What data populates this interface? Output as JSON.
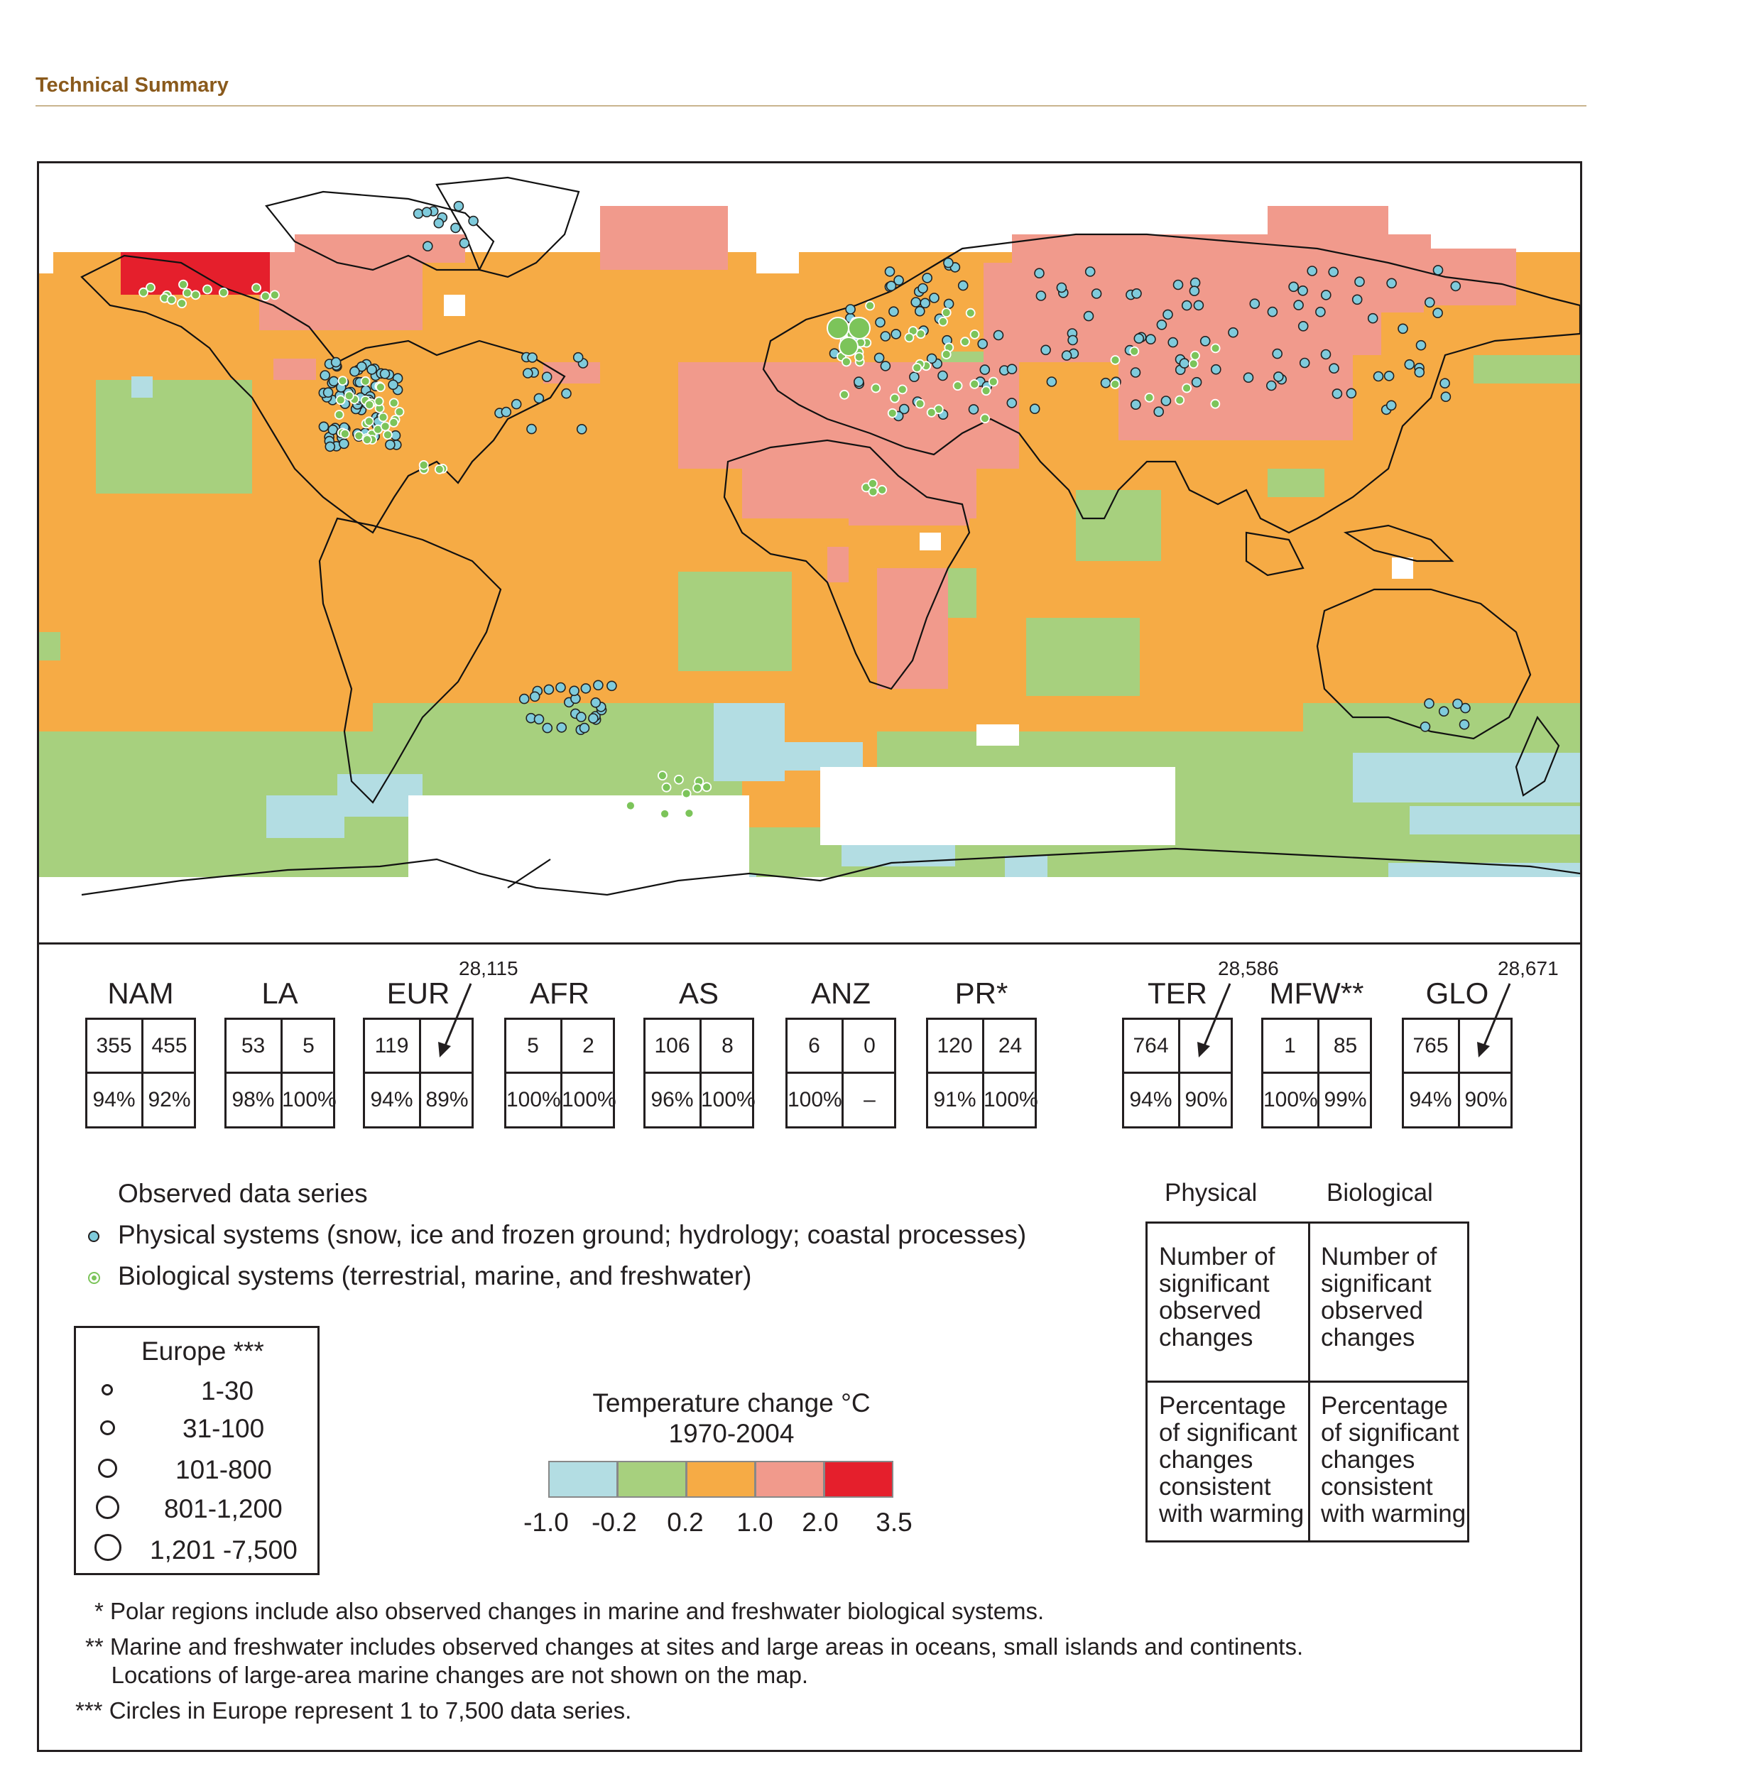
{
  "header": {
    "section_title": "Technical Summary"
  },
  "colors": {
    "header_text": "#8a5a1c",
    "header_rule": "#c9b48e",
    "ocean_default": "#f6ab45",
    "bin_m1_m02": "#b3dde3",
    "bin_m02_02": "#a7d07e",
    "bin_02_1": "#f6ab45",
    "bin_1_2": "#f19a8c",
    "bin_2_35": "#e51f2c",
    "physical_dot": "#7fcbdc",
    "biological_dot": "#7cc45a"
  },
  "regions": [
    {
      "code": "NAM",
      "physical_count": "355",
      "biological_count": "455",
      "physical_pct": "94%",
      "biological_pct": "92%"
    },
    {
      "code": "LA",
      "physical_count": "53",
      "biological_count": "5",
      "physical_pct": "98%",
      "biological_pct": "100%"
    },
    {
      "code": "EUR",
      "physical_count": "119",
      "biological_count": "",
      "physical_pct": "94%",
      "biological_pct": "89%",
      "arrow_value": "28,115"
    },
    {
      "code": "AFR",
      "physical_count": "5",
      "biological_count": "2",
      "physical_pct": "100%",
      "biological_pct": "100%"
    },
    {
      "code": "AS",
      "physical_count": "106",
      "biological_count": "8",
      "physical_pct": "96%",
      "biological_pct": "100%"
    },
    {
      "code": "ANZ",
      "physical_count": "6",
      "biological_count": "0",
      "physical_pct": "100%",
      "biological_pct": "–"
    },
    {
      "code": "PR*",
      "physical_count": "120",
      "biological_count": "24",
      "physical_pct": "91%",
      "biological_pct": "100%"
    },
    {
      "code": "TER",
      "physical_count": "764",
      "biological_count": "",
      "physical_pct": "94%",
      "biological_pct": "90%",
      "arrow_value": "28,586"
    },
    {
      "code": "MFW**",
      "physical_count": "1",
      "biological_count": "85",
      "physical_pct": "100%",
      "biological_pct": "99%"
    },
    {
      "code": "GLO",
      "physical_count": "765",
      "biological_count": "",
      "physical_pct": "94%",
      "biological_pct": "90%",
      "arrow_value": "28,671"
    }
  ],
  "legend": {
    "title": "Observed data series",
    "physical": "Physical systems (snow, ice and frozen ground; hydrology; coastal processes)",
    "biological": "Biological systems (terrestrial, marine, and freshwater)"
  },
  "europe_legend": {
    "title": "Europe ***",
    "ranges": [
      "1-30",
      "31-100",
      "101-800",
      "801-1,200",
      "1,201 -7,500"
    ]
  },
  "temperature_scale": {
    "title_line1": "Temperature change °C",
    "title_line2": "1970-2004",
    "ticks": [
      "-1.0",
      "-0.2",
      "0.2",
      "1.0",
      "2.0",
      "3.5"
    ]
  },
  "key": {
    "col1": "Physical",
    "col2": "Biological",
    "top_text": "Number of\nsignificant\nobserved\nchanges",
    "bottom_text": "Percentage\nof significant\nchanges\nconsistent\nwith warming"
  },
  "notes": {
    "n1": "* Polar regions include also observed changes in marine and freshwater biological systems.",
    "n2a": "** Marine and freshwater includes observed changes at sites and large areas in oceans, small islands and continents.",
    "n2b": "    Locations of large-area marine changes are not shown on the map.",
    "n3": "*** Circles in Europe represent 1 to 7,500 data series."
  }
}
